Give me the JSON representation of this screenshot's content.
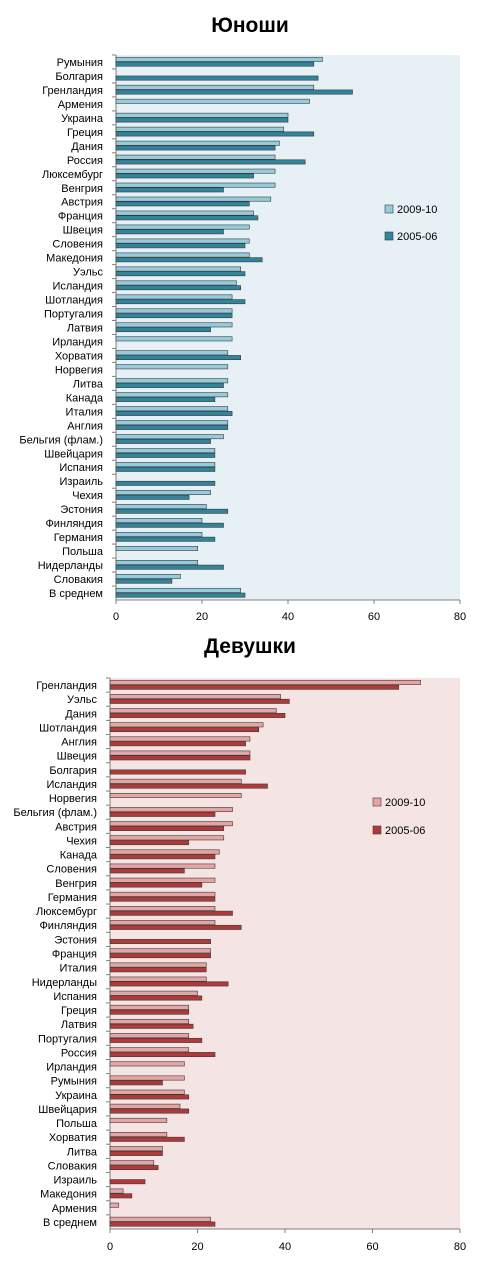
{
  "chart_data": [
    {
      "type": "bar",
      "orientation": "horizontal",
      "title": "Юноши",
      "categories": [
        "Румыния",
        "Болгария",
        "Гренландия",
        "Армения",
        "Украина",
        "Греция",
        "Дания",
        "Россия",
        "Люксембург",
        "Венгрия",
        "Австрия",
        "Франция",
        "Швеция",
        "Словения",
        "Македония",
        "Уэльс",
        "Исландия",
        "Шотландия",
        "Португалия",
        "Латвия",
        "Ирландия",
        "Хорватия",
        "Норвегия",
        "Литва",
        "Канада",
        "Италия",
        "Англия",
        "Бельгия (флам.)",
        "Швейцария",
        "Испания",
        "Израиль",
        "Чехия",
        "Эстония",
        "Финляндия",
        "Германия",
        "Польша",
        "Нидерланды",
        "Словакия",
        "В среднем"
      ],
      "series": [
        {
          "name": "2009-10",
          "color": "#93cddd",
          "values": [
            48,
            null,
            46,
            45,
            40,
            39,
            38,
            37,
            37,
            37,
            36,
            32,
            31,
            31,
            31,
            29,
            28,
            27,
            27,
            27,
            27,
            26,
            26,
            26,
            26,
            26,
            26,
            25,
            23,
            23,
            null,
            22,
            21,
            20,
            20,
            19,
            19,
            15,
            29
          ]
        },
        {
          "name": "2005-06",
          "color": "#31849b",
          "values": [
            46,
            47,
            55,
            null,
            40,
            46,
            37,
            44,
            32,
            25,
            31,
            33,
            25,
            30,
            34,
            30,
            29,
            30,
            27,
            22,
            null,
            29,
            null,
            25,
            23,
            27,
            26,
            22,
            23,
            23,
            23,
            17,
            26,
            25,
            23,
            null,
            25,
            13,
            30
          ]
        }
      ],
      "xlim": [
        0,
        80
      ],
      "xticks": [
        0,
        20,
        40,
        60,
        80
      ],
      "legend": "right",
      "background": "#e7f0f5"
    },
    {
      "type": "bar",
      "orientation": "horizontal",
      "title": "Девушки",
      "categories": [
        "Гренландия",
        "Уэльс",
        "Дания",
        "Шотландия",
        "Англия",
        "Швеция",
        "Болгария",
        "Исландия",
        "Норвегия",
        "Бельгия (флам.)",
        "Австрия",
        "Чехия",
        "Канада",
        "Словения",
        "Венгрия",
        "Германия",
        "Люксембург",
        "Финляндия",
        "Эстония",
        "Франция",
        "Италия",
        "Нидерланды",
        "Испания",
        "Греция",
        "Латвия",
        "Португалия",
        "Россия",
        "Ирландия",
        "Румыния",
        "Украина",
        "Швейцария",
        "Польша",
        "Хорватия",
        "Литва",
        "Словакия",
        "Израиль",
        "Македония",
        "Армения",
        "В среднем"
      ],
      "series": [
        {
          "name": "2009-10",
          "color": "#e6a5a5",
          "values": [
            71,
            39,
            38,
            35,
            32,
            32,
            null,
            30,
            30,
            28,
            28,
            26,
            25,
            24,
            24,
            24,
            24,
            24,
            null,
            23,
            22,
            22,
            20,
            18,
            18,
            18,
            18,
            17,
            17,
            17,
            16,
            13,
            13,
            12,
            10,
            null,
            3,
            2,
            23
          ]
        },
        {
          "name": "2005-06",
          "color": "#b03a3a",
          "values": [
            66,
            41,
            40,
            34,
            31,
            32,
            31,
            36,
            null,
            24,
            26,
            18,
            24,
            17,
            21,
            24,
            28,
            30,
            23,
            23,
            22,
            27,
            21,
            18,
            19,
            21,
            24,
            null,
            12,
            18,
            18,
            null,
            17,
            12,
            11,
            8,
            5,
            null,
            24
          ]
        }
      ],
      "xlim": [
        0,
        80
      ],
      "xticks": [
        0,
        20,
        40,
        60,
        80
      ],
      "legend": "right",
      "background": "#f4e4e4"
    }
  ]
}
